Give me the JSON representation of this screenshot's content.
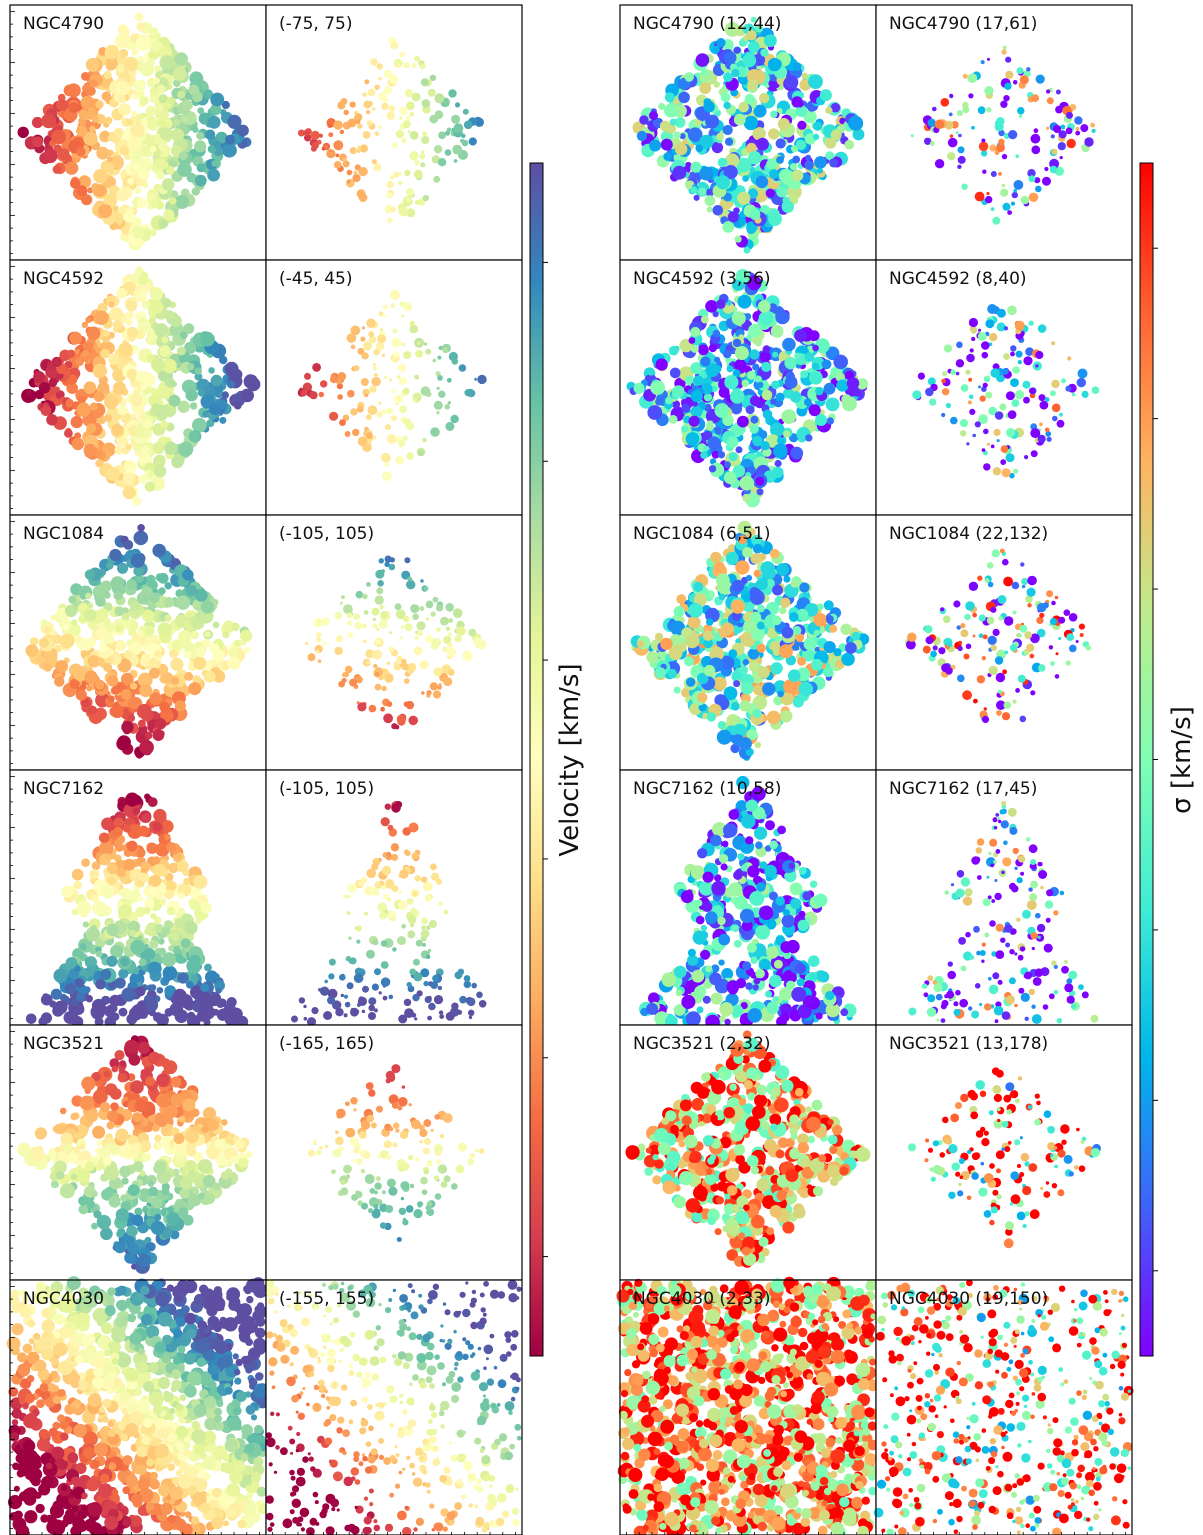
{
  "chart_data": {
    "type": "heatmap",
    "description_note": "",
    "rows": [
      {
        "galaxy": "NGC4790",
        "vel_label": "NGC4790",
        "range_label": "(-75, 75)",
        "vrange": [
          -75,
          75
        ],
        "sig_label": "NGC4790 (12,44)",
        "sig_label2": "NGC4790 (17,61)",
        "shape": "diamond"
      },
      {
        "galaxy": "NGC4592",
        "vel_label": "NGC4592",
        "range_label": "(-45, 45)",
        "vrange": [
          -45,
          45
        ],
        "sig_label": "NGC4592 (3,56)",
        "sig_label2": "NGC4592 (8,40)",
        "shape": "diamond"
      },
      {
        "galaxy": "NGC1084",
        "vel_label": "NGC1084",
        "range_label": "(-105, 105)",
        "vrange": [
          -105,
          105
        ],
        "sig_label": "NGC1084 (6,51)",
        "sig_label2": "NGC1084 (22,132)",
        "shape": "diamond"
      },
      {
        "galaxy": "NGC7162",
        "vel_label": "NGC7162",
        "range_label": "(-105, 105)",
        "vrange": [
          -105,
          105
        ],
        "sig_label": "NGC7162 (10,58)",
        "sig_label2": "NGC7162 (17,45)",
        "shape": "vertical"
      },
      {
        "galaxy": "NGC3521",
        "vel_label": "NGC3521",
        "range_label": "(-165, 165)",
        "vrange": [
          -165,
          165
        ],
        "sig_label": "NGC3521 (2,32)",
        "sig_label2": "NGC3521 (13,178)",
        "shape": "diamond"
      },
      {
        "galaxy": "NGC4030",
        "vel_label": "NGC4030",
        "range_label": "(-155, 155)",
        "vrange": [
          -155,
          155
        ],
        "sig_label": "NGC4030 (2,33)",
        "sig_label2": "NGC4030 (19,150)",
        "shape": "square"
      }
    ],
    "colorbars": [
      {
        "label": "Velocity [km/s]",
        "colormap": "Spectral",
        "colors": [
          "#9e0142",
          "#d53e4f",
          "#f46d43",
          "#fdae61",
          "#fee08b",
          "#ffffbf",
          "#e6f598",
          "#abdda4",
          "#66c2a5",
          "#3288bd",
          "#5e4fa2"
        ]
      },
      {
        "label": "σ [km/s]",
        "colormap": "rainbow",
        "colors": [
          "#8000ff",
          "#4062fa",
          "#00b5eb",
          "#40ecd4",
          "#80ffb4",
          "#c0eb8d",
          "#ffb360",
          "#ff6230",
          "#ff0000"
        ]
      }
    ],
    "grid": false,
    "legend": "none"
  }
}
